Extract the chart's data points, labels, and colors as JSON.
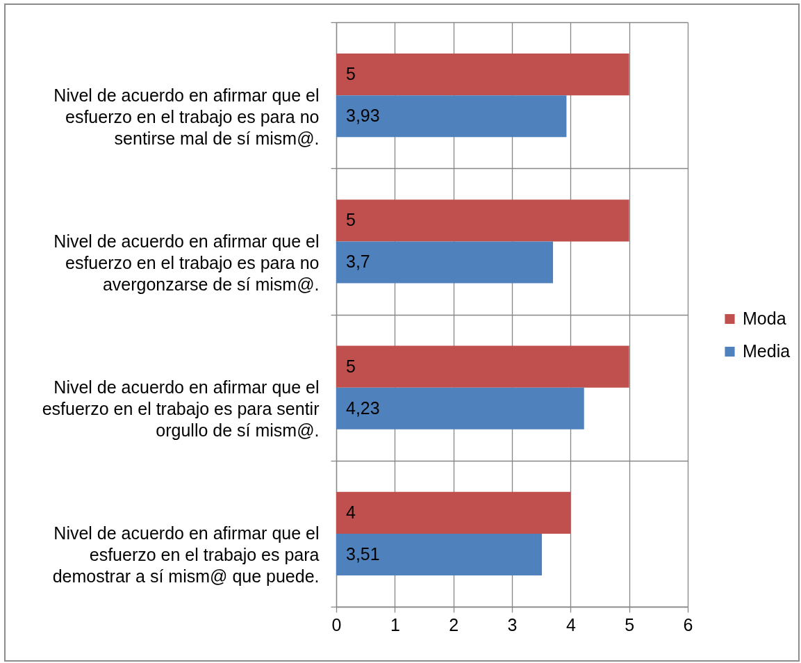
{
  "chart_data": {
    "type": "bar",
    "orientation": "horizontal",
    "categories": [
      "Nivel de acuerdo en afirmar que el esfuerzo en el trabajo es para no sentirse mal de sí mism@.",
      "Nivel de acuerdo en afirmar que el esfuerzo en el trabajo es para no avergonzarse de sí mism@.",
      "Nivel de acuerdo en afirmar que el esfuerzo en el trabajo es para sentir orgullo de sí mism@.",
      "Nivel de acuerdo en afirmar que el esfuerzo en el trabajo es para demostrar a sí mism@ que puede."
    ],
    "series": [
      {
        "name": "Moda",
        "color": "#c0504d",
        "values": [
          5,
          5,
          5,
          4
        ],
        "value_labels": [
          "5",
          "5",
          "5",
          "4"
        ]
      },
      {
        "name": "Media",
        "color": "#4f81bd",
        "values": [
          3.93,
          3.7,
          4.23,
          3.51
        ],
        "value_labels": [
          "3,93",
          "3,7",
          "4,23",
          "3,51"
        ]
      }
    ],
    "xlim": [
      0,
      6
    ],
    "xticks": [
      0,
      1,
      2,
      3,
      4,
      5,
      6
    ],
    "grid": true,
    "legend": "right"
  }
}
